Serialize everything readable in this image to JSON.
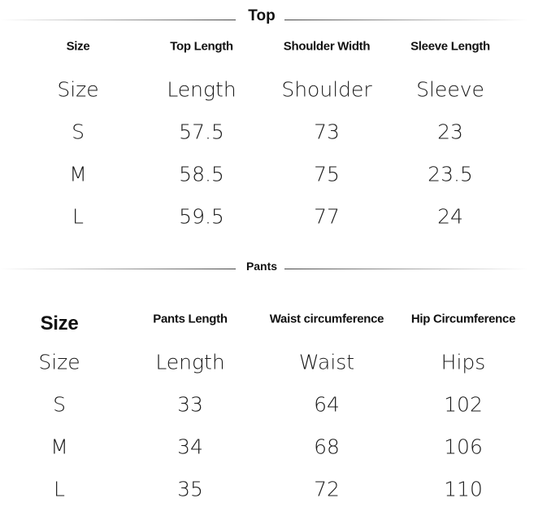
{
  "top": {
    "title": "Top",
    "headers": [
      "Size",
      "Top Length",
      "Shoulder Width",
      "Sleeve Length"
    ],
    "subheaders": [
      "Size",
      "Length",
      "Shoulder",
      "Sleeve"
    ],
    "rows": [
      [
        "S",
        "57.5",
        "73",
        "23"
      ],
      [
        "M",
        "58.5",
        "75",
        "23.5"
      ],
      [
        "L",
        "59.5",
        "77",
        "24"
      ]
    ]
  },
  "pants": {
    "title": "Pants",
    "headers": [
      "Size",
      "Pants Length",
      "Waist circumference",
      "Hip Circumference"
    ],
    "subheaders": [
      "Size",
      "Length",
      "Waist",
      "Hips"
    ],
    "rows": [
      [
        "S",
        "33",
        "64",
        "102"
      ],
      [
        "M",
        "34",
        "68",
        "106"
      ],
      [
        "L",
        "35",
        "72",
        "110"
      ]
    ]
  }
}
